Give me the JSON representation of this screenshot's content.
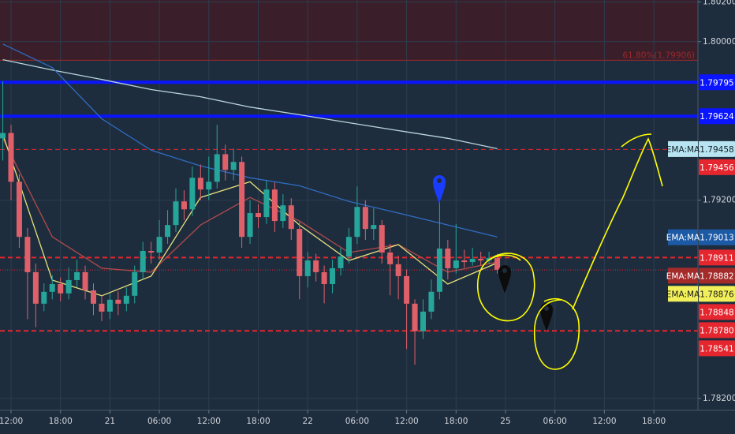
{
  "chart_data": {
    "type": "candlestick",
    "xlim": [
      -1.34,
      83.35
    ],
    "ylim": [
      1.7814,
      1.8021
    ],
    "xticks": [
      {
        "value": 0,
        "label": "12:00"
      },
      {
        "value": 6,
        "label": "18:00"
      },
      {
        "value": 12,
        "label": "21"
      },
      {
        "value": 18,
        "label": "06:00"
      },
      {
        "value": 24,
        "label": "12:00"
      },
      {
        "value": 30,
        "label": "18:00"
      },
      {
        "value": 36,
        "label": "22"
      },
      {
        "value": 42,
        "label": "06:00"
      },
      {
        "value": 48,
        "label": "12:00"
      },
      {
        "value": 54,
        "label": "18:00"
      },
      {
        "value": 60,
        "label": "25"
      },
      {
        "value": 66,
        "label": "06:00"
      },
      {
        "value": 72,
        "label": "12:00"
      },
      {
        "value": 78,
        "label": "18:00"
      }
    ],
    "yticks": [
      {
        "value": 1.802,
        "label": "1.80200"
      },
      {
        "value": 1.8,
        "label": "1.80000"
      },
      {
        "value": 1.792,
        "label": "1.79200"
      },
      {
        "value": 1.782,
        "label": "1.78200"
      }
    ],
    "grid": true,
    "up_color": "#26a69a",
    "down_color": "#e0606a",
    "x": [
      -1,
      0,
      1,
      2,
      3,
      4,
      5,
      6,
      7,
      8,
      9,
      10,
      11,
      12,
      13,
      14,
      15,
      16,
      17,
      18,
      19,
      20,
      21,
      22,
      23,
      24,
      25,
      26,
      27,
      28,
      29,
      30,
      31,
      32,
      33,
      34,
      35,
      36,
      37,
      38,
      39,
      40,
      41,
      42,
      43,
      44,
      45,
      46,
      47,
      48,
      49,
      50,
      51,
      52,
      53,
      54,
      55,
      56,
      57,
      58,
      59
    ],
    "open": [
      1.79512,
      1.79539,
      1.79293,
      1.79015,
      1.78837,
      1.78678,
      1.78738,
      1.78777,
      1.7873,
      1.78797,
      1.78837,
      1.78745,
      1.78678,
      1.78638,
      1.78698,
      1.78678,
      1.78718,
      1.78837,
      1.78944,
      1.78936,
      1.79015,
      1.79075,
      1.79194,
      1.79154,
      1.79313,
      1.79254,
      1.79293,
      1.79432,
      1.79353,
      1.79393,
      1.79015,
      1.79135,
      1.79115,
      1.79254,
      1.79095,
      1.79174,
      1.79055,
      1.78817,
      1.78896,
      1.78837,
      1.78777,
      1.78857,
      1.78916,
      1.79015,
      1.79166,
      1.79055,
      1.79075,
      1.78936,
      1.78877,
      1.78817,
      1.78678,
      1.78539,
      1.78638,
      1.78738,
      1.78956,
      1.78857,
      1.78896,
      1.78888,
      1.78904,
      1.78896,
      1.78908
    ],
    "high": [
      1.798,
      1.7958,
      1.7933,
      1.7906,
      1.7888,
      1.7878,
      1.7882,
      1.7881,
      1.7886,
      1.789,
      1.7887,
      1.7878,
      1.7872,
      1.7873,
      1.7874,
      1.7876,
      1.7887,
      1.7899,
      1.7899,
      1.791,
      1.7915,
      1.7926,
      1.7925,
      1.7937,
      1.7938,
      1.7942,
      1.7958,
      1.7948,
      1.7946,
      1.7942,
      1.792,
      1.7918,
      1.793,
      1.7929,
      1.7923,
      1.7921,
      1.7909,
      1.7894,
      1.7893,
      1.7887,
      1.789,
      1.7896,
      1.7906,
      1.7927,
      1.792,
      1.7916,
      1.791,
      1.7898,
      1.7892,
      1.7885,
      1.787,
      1.787,
      1.788,
      1.7923,
      1.79,
      1.7908,
      1.7895,
      1.7896,
      1.7894,
      1.7894,
      1.7893
    ],
    "low": [
      1.794,
      1.792,
      1.7896,
      1.786,
      1.7856,
      1.7864,
      1.787,
      1.7869,
      1.787,
      1.7876,
      1.787,
      1.7862,
      1.7859,
      1.786,
      1.7862,
      1.7864,
      1.7868,
      1.788,
      1.7888,
      1.789,
      1.7898,
      1.7904,
      1.791,
      1.7912,
      1.792,
      1.792,
      1.7926,
      1.793,
      1.793,
      1.7896,
      1.7898,
      1.7906,
      1.7908,
      1.7904,
      1.7906,
      1.79,
      1.787,
      1.7876,
      1.7879,
      1.7868,
      1.7873,
      1.7882,
      1.7888,
      1.7898,
      1.79,
      1.79,
      1.7888,
      1.7872,
      1.787,
      1.7845,
      1.7837,
      1.785,
      1.786,
      1.787,
      1.788,
      1.7883,
      1.7886,
      1.7887,
      1.7887,
      1.7888,
      1.7883
    ],
    "close": [
      1.79539,
      1.79293,
      1.79015,
      1.78837,
      1.78678,
      1.78738,
      1.78777,
      1.7873,
      1.78797,
      1.78837,
      1.78745,
      1.78678,
      1.78638,
      1.78698,
      1.78678,
      1.78718,
      1.78837,
      1.78944,
      1.78936,
      1.79015,
      1.79075,
      1.79194,
      1.79154,
      1.79313,
      1.79254,
      1.79293,
      1.79432,
      1.79353,
      1.79393,
      1.79015,
      1.79135,
      1.79115,
      1.79254,
      1.79095,
      1.79174,
      1.79055,
      1.78817,
      1.78896,
      1.78837,
      1.78777,
      1.78857,
      1.78916,
      1.79015,
      1.79166,
      1.79055,
      1.79075,
      1.78936,
      1.78877,
      1.78817,
      1.78678,
      1.78539,
      1.78638,
      1.78738,
      1.78956,
      1.78857,
      1.78896,
      1.78888,
      1.78904,
      1.78896,
      1.78908,
      1.78849
    ],
    "ma_lines": [
      {
        "color": "#b9d6dc",
        "x": [
          -1,
          5,
          11,
          17,
          23,
          29,
          35,
          41,
          47,
          53,
          59
        ],
        "values": [
          1.79909,
          1.79857,
          1.79809,
          1.79758,
          1.79722,
          1.7967,
          1.79631,
          1.79591,
          1.79551,
          1.79512,
          1.7946
        ]
      },
      {
        "color": "#2f6cc0",
        "x": [
          -1,
          5,
          11,
          17,
          23,
          29,
          35,
          41,
          47,
          53,
          59
        ],
        "values": [
          1.79988,
          1.79869,
          1.79611,
          1.79452,
          1.79373,
          1.79313,
          1.79273,
          1.79194,
          1.79135,
          1.79075,
          1.79015
        ]
      },
      {
        "color": "#b24a4a",
        "x": [
          -1,
          5,
          11,
          17,
          23,
          29,
          35,
          41,
          47,
          53,
          59
        ],
        "values": [
          1.79512,
          1.79015,
          1.78857,
          1.78837,
          1.79075,
          1.79214,
          1.79095,
          1.78936,
          1.78976,
          1.78837,
          1.78888
        ]
      },
      {
        "color": "#e6e07a",
        "x": [
          -1,
          5,
          11,
          17,
          23,
          29,
          35,
          41,
          47,
          53,
          59
        ],
        "values": [
          1.79532,
          1.78797,
          1.78718,
          1.78817,
          1.79214,
          1.79293,
          1.79075,
          1.78896,
          1.78976,
          1.78777,
          1.78884
        ]
      }
    ],
    "price_lines": [
      {
        "value": 1.79906,
        "label": "61.80%(1.79906)",
        "color": "#9a2a2a",
        "style": "solid",
        "width": 1,
        "fill_above": "#3a1e2a"
      },
      {
        "value": 1.79795,
        "color": "#0a14ff",
        "style": "solid",
        "width": 4
      },
      {
        "value": 1.79624,
        "color": "#0a14ff",
        "style": "solid",
        "width": 4
      },
      {
        "value": 1.79456,
        "color": "#e5262e",
        "style": "dashed",
        "width": 1
      },
      {
        "value": 1.78911,
        "color": "#e5262e",
        "style": "dashed",
        "width": 2
      },
      {
        "value": 1.78848,
        "color": "#e5262e",
        "style": "dotted",
        "width": 1
      },
      {
        "value": 1.78541,
        "color": "#e5262e",
        "style": "dashed",
        "width": 2
      }
    ],
    "price_labels": [
      {
        "value": 1.79795,
        "label": "1.79795",
        "color": "#0a14ff",
        "text_color": "#ffffff"
      },
      {
        "value": 1.79624,
        "label": "1.79624",
        "color": "#0a14ff",
        "text_color": "#ffffff"
      },
      {
        "value": 1.79458,
        "label": "1.79458",
        "tag": "EMA:MA",
        "color": "#b7e4f0",
        "text_color": "#10202a"
      },
      {
        "value": 1.79456,
        "label": "1.79456",
        "color": "#e5262e",
        "text_color": "#ffffff"
      },
      {
        "value": 1.79013,
        "label": "1.79013",
        "tag": "EMA:MA",
        "color": "#1d5aa6",
        "text_color": "#ffffff"
      },
      {
        "value": 1.78911,
        "label": "1.78911",
        "color": "#e5262e",
        "text_color": "#ffffff"
      },
      {
        "value": 1.78882,
        "label": "1.78882",
        "tag": "EMA:MA",
        "color": "#a52a2a",
        "text_color": "#ffffff"
      },
      {
        "value": 1.78876,
        "label": "1.78876",
        "tag": "EMA:MA",
        "color": "#f2f05a",
        "text_color": "#1a1a1a"
      },
      {
        "value": 1.78848,
        "label": "1.78848",
        "color": "#e5262e",
        "text_color": "#ffffff"
      },
      {
        "value": 1.7878,
        "label": "1.78780",
        "color": "#e5262e",
        "text_color": "#ffffff"
      },
      {
        "value": 1.78541,
        "label": "1.78541",
        "color": "#e5262e",
        "text_color": "#ffffff"
      }
    ]
  }
}
